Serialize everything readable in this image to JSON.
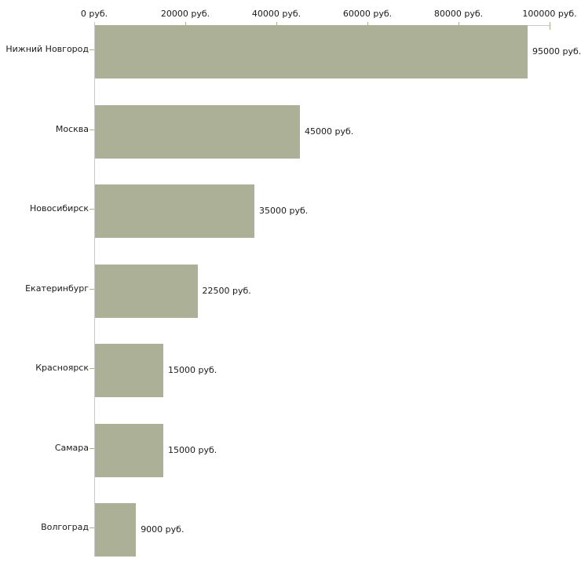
{
  "chart_data": {
    "type": "bar",
    "orientation": "horizontal",
    "title": "",
    "xlabel": "",
    "ylabel": "",
    "unit": "руб.",
    "xlim": [
      0,
      100000
    ],
    "grid": "off",
    "legend": "none",
    "categories": [
      "Нижний Новгород",
      "Москва",
      "Новосибирск",
      "Екатеринбург",
      "Красноярск",
      "Самара",
      "Волгоград"
    ],
    "values": [
      95000,
      45000,
      35000,
      22500,
      15000,
      15000,
      9000
    ],
    "value_labels": [
      "95000 руб.",
      "45000 руб.",
      "35000 руб.",
      "22500 руб.",
      "15000 руб.",
      "15000 руб.",
      "9000 руб."
    ],
    "x_ticks": [
      {
        "value": 0,
        "label": "0 руб."
      },
      {
        "value": 20000,
        "label": "20000 руб."
      },
      {
        "value": 40000,
        "label": "40000 руб."
      },
      {
        "value": 60000,
        "label": "60000 руб."
      },
      {
        "value": 80000,
        "label": "80000 руб."
      },
      {
        "value": 100000,
        "label": "100000 руб."
      }
    ],
    "colors": {
      "bar": "#abb096",
      "tick_mark": "#b3af88",
      "axis_line": "#c9c9c9",
      "text": "#1a1a1a",
      "background": "#ffffff"
    }
  }
}
